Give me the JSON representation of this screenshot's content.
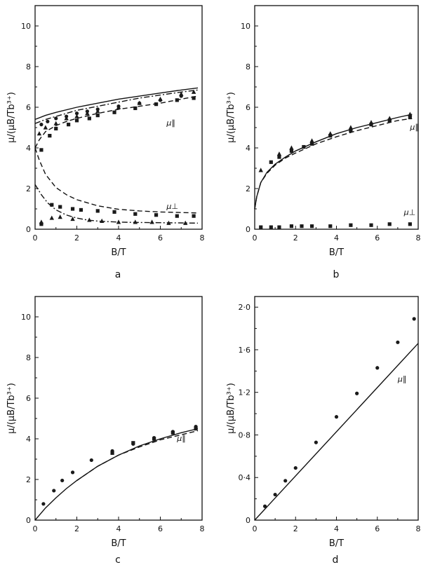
{
  "chart_data": [
    {
      "type": "scatter",
      "panel_label": "a",
      "xlabel": "B/T",
      "ylabel": "μ/(μB/Tb³⁺)",
      "xlim": [
        0,
        8
      ],
      "ylim": [
        0,
        11
      ],
      "xticks": [
        0,
        2,
        4,
        6,
        8
      ],
      "yticks": [
        2,
        4,
        6,
        8,
        10
      ],
      "grid": false,
      "annotations": [
        {
          "text": "μ∥",
          "x": 6.3,
          "y": 5.1
        },
        {
          "text": "μ⊥",
          "x": 6.3,
          "y": 1.0
        }
      ],
      "series": [
        {
          "style": "solid",
          "kind": "line",
          "x": [
            0,
            0.5,
            1,
            2,
            3,
            4,
            5,
            6,
            7,
            7.8
          ],
          "y": [
            5.4,
            5.6,
            5.75,
            6.0,
            6.2,
            6.4,
            6.55,
            6.7,
            6.85,
            6.95
          ]
        },
        {
          "style": "dashdot",
          "kind": "line",
          "x": [
            0,
            0.5,
            1,
            2,
            3,
            4,
            5,
            6,
            7,
            7.8
          ],
          "y": [
            5.2,
            5.4,
            5.55,
            5.85,
            6.05,
            6.25,
            6.45,
            6.6,
            6.75,
            6.85
          ]
        },
        {
          "style": "dashed",
          "kind": "line",
          "x": [
            0,
            0.2,
            0.5,
            1,
            1.5,
            2,
            3,
            4,
            5,
            6,
            7,
            7.8
          ],
          "y": [
            4.0,
            4.4,
            4.8,
            5.1,
            5.3,
            5.45,
            5.7,
            5.9,
            6.05,
            6.2,
            6.4,
            6.55
          ]
        },
        {
          "style": "dashed",
          "kind": "line",
          "x": [
            0,
            0.2,
            0.5,
            1,
            1.5,
            2,
            3,
            4,
            5,
            6,
            7,
            7.8
          ],
          "y": [
            4.0,
            3.4,
            2.7,
            2.05,
            1.7,
            1.45,
            1.15,
            0.98,
            0.9,
            0.85,
            0.82,
            0.8
          ]
        },
        {
          "style": "dashdot",
          "kind": "line",
          "x": [
            0,
            0.3,
            0.6,
            1,
            1.5,
            2,
            2.5,
            3,
            4,
            5,
            6,
            7,
            7.8
          ],
          "y": [
            2.2,
            1.7,
            1.3,
            0.95,
            0.7,
            0.55,
            0.45,
            0.4,
            0.35,
            0.33,
            0.32,
            0.31,
            0.3
          ]
        },
        {
          "marker": "triangle",
          "kind": "points",
          "x": [
            0.2,
            0.5,
            1,
            1.5,
            2,
            2.5,
            3,
            4,
            5,
            6,
            7,
            7.6
          ],
          "y": [
            4.7,
            5.0,
            5.2,
            5.45,
            5.55,
            5.7,
            5.8,
            6.0,
            6.2,
            6.4,
            6.65,
            6.75
          ]
        },
        {
          "marker": "circle",
          "kind": "points",
          "x": [
            0.3,
            0.6,
            1,
            1.5,
            2,
            2.5,
            3,
            4,
            5,
            6,
            7
          ],
          "y": [
            5.15,
            5.3,
            5.45,
            5.55,
            5.7,
            5.8,
            5.9,
            6.05,
            6.2,
            6.35,
            6.55
          ]
        },
        {
          "marker": "square",
          "kind": "points",
          "x": [
            0.3,
            0.7,
            1,
            1.6,
            2,
            2.6,
            3,
            3.8,
            4.8,
            5.8,
            6.8,
            7.6
          ],
          "y": [
            3.9,
            4.6,
            4.95,
            5.15,
            5.35,
            5.45,
            5.6,
            5.75,
            5.95,
            6.15,
            6.35,
            6.45
          ]
        },
        {
          "marker": "square",
          "kind": "points",
          "x": [
            0.3,
            0.8,
            1.2,
            1.8,
            2.2,
            3,
            3.8,
            4.8,
            5.8,
            6.8,
            7.6
          ],
          "y": [
            0.25,
            1.2,
            1.1,
            1.0,
            0.95,
            0.9,
            0.85,
            0.75,
            0.7,
            0.65,
            0.65
          ]
        },
        {
          "marker": "triangle",
          "kind": "points",
          "x": [
            0.3,
            0.8,
            1.2,
            1.8,
            2.6,
            3.2,
            4,
            4.8,
            5.6,
            6.4,
            7.2
          ],
          "y": [
            0.35,
            0.55,
            0.6,
            0.5,
            0.45,
            0.4,
            0.35,
            0.35,
            0.35,
            0.3,
            0.3
          ]
        }
      ]
    },
    {
      "type": "scatter",
      "panel_label": "b",
      "xlabel": "B/T",
      "ylabel": "μ/(μB/Tb³⁺)",
      "xlim": [
        0,
        8
      ],
      "ylim": [
        0,
        11
      ],
      "xticks": [
        0,
        2,
        4,
        6,
        8
      ],
      "yticks": [
        2,
        4,
        6,
        8,
        10
      ],
      "grid": false,
      "annotations": [
        {
          "text": "μ∥",
          "x": 7.6,
          "y": 4.9
        },
        {
          "text": "μ⊥",
          "x": 7.3,
          "y": 0.7
        }
      ],
      "series": [
        {
          "style": "solid",
          "kind": "line",
          "x": [
            0,
            0.1,
            0.3,
            0.6,
            1,
            1.5,
            2,
            3,
            4,
            5,
            6,
            7,
            7.7
          ],
          "y": [
            1.0,
            1.6,
            2.3,
            2.8,
            3.2,
            3.55,
            3.85,
            4.3,
            4.7,
            5.0,
            5.25,
            5.5,
            5.65
          ]
        },
        {
          "style": "dashed",
          "kind": "line",
          "x": [
            0,
            0.1,
            0.3,
            0.6,
            1,
            1.5,
            2,
            3,
            4,
            5,
            6,
            7,
            7.7
          ],
          "y": [
            1.0,
            1.6,
            2.3,
            2.75,
            3.15,
            3.5,
            3.75,
            4.2,
            4.55,
            4.85,
            5.1,
            5.35,
            5.45
          ]
        },
        {
          "marker": "triangle",
          "kind": "points",
          "x": [
            0.3,
            1.2,
            1.8,
            2.8,
            3.7,
            4.7,
            5.7,
            6.6,
            7.6
          ],
          "y": [
            2.9,
            3.7,
            4.0,
            4.35,
            4.7,
            5.0,
            5.25,
            5.45,
            5.65
          ]
        },
        {
          "marker": "square",
          "kind": "points",
          "x": [
            0.8,
            1.2,
            1.8,
            2.4,
            2.8,
            3.7,
            4.7,
            5.7,
            6.6,
            7.6
          ],
          "y": [
            3.3,
            3.55,
            3.85,
            4.05,
            4.2,
            4.6,
            4.85,
            5.15,
            5.35,
            5.5
          ]
        },
        {
          "marker": "square",
          "kind": "points",
          "x": [
            0.3,
            0.8,
            1.2,
            1.8,
            2.3,
            2.8,
            3.7,
            4.7,
            5.7,
            6.6,
            7.6
          ],
          "y": [
            0.1,
            0.1,
            0.1,
            0.15,
            0.15,
            0.15,
            0.15,
            0.2,
            0.2,
            0.25,
            0.25
          ]
        }
      ]
    },
    {
      "type": "scatter",
      "panel_label": "c",
      "xlabel": "B/T",
      "ylabel": "μ/(μB/Tb³⁺)",
      "xlim": [
        0,
        8
      ],
      "ylim": [
        0,
        11
      ],
      "xticks": [
        0,
        2,
        4,
        6,
        8
      ],
      "yticks": [
        2,
        4,
        6,
        8,
        10
      ],
      "grid": false,
      "annotations": [
        {
          "text": "μ∥",
          "x": 6.8,
          "y": 3.9
        }
      ],
      "series": [
        {
          "style": "solid",
          "kind": "line",
          "x": [
            0,
            0.5,
            1,
            1.5,
            2,
            3,
            4,
            5,
            6,
            7,
            7.8
          ],
          "y": [
            0,
            0.6,
            1.1,
            1.55,
            1.95,
            2.65,
            3.2,
            3.65,
            4.0,
            4.3,
            4.5
          ]
        },
        {
          "style": "dashed",
          "kind": "line",
          "x": [
            2,
            3,
            4,
            5,
            6,
            7,
            7.8
          ],
          "y": [
            1.95,
            2.65,
            3.2,
            3.6,
            3.95,
            4.2,
            4.4
          ]
        },
        {
          "marker": "circle",
          "kind": "points",
          "x": [
            0.4,
            0.9,
            1.3,
            1.8,
            2.7,
            3.7,
            4.7,
            5.7,
            6.6,
            7.7
          ],
          "y": [
            0.8,
            1.45,
            1.95,
            2.35,
            2.95,
            3.4,
            3.75,
            4.05,
            4.35,
            4.6
          ]
        },
        {
          "marker": "square",
          "kind": "points",
          "x": [
            3.7,
            4.7,
            5.7,
            6.6,
            7.7
          ],
          "y": [
            3.3,
            3.8,
            4.0,
            4.3,
            4.5
          ]
        }
      ]
    },
    {
      "type": "scatter",
      "panel_label": "d",
      "xlabel": "B/T",
      "ylabel": "μ/(μB/Tb³⁺)",
      "xlim": [
        0,
        8
      ],
      "ylim": [
        0,
        2.1
      ],
      "xticks": [
        0,
        2,
        4,
        6,
        8
      ],
      "yticks": [
        0.4,
        0.8,
        1.2,
        1.6,
        2.0
      ],
      "yticklabels": [
        "0·4",
        "0·8",
        "1·2",
        "1·6",
        "2·0"
      ],
      "grid": false,
      "annotations": [
        {
          "text": "μ∥",
          "x": 7.0,
          "y": 1.3
        }
      ],
      "series": [
        {
          "style": "solid",
          "kind": "line",
          "x": [
            0,
            8
          ],
          "y": [
            0,
            1.66
          ]
        },
        {
          "marker": "circle",
          "kind": "points",
          "x": [
            0.5,
            1,
            1.5,
            2,
            3,
            4,
            5,
            6,
            7,
            7.8
          ],
          "y": [
            0.13,
            0.24,
            0.37,
            0.49,
            0.73,
            0.97,
            1.19,
            1.43,
            1.67,
            1.89
          ]
        }
      ]
    }
  ]
}
